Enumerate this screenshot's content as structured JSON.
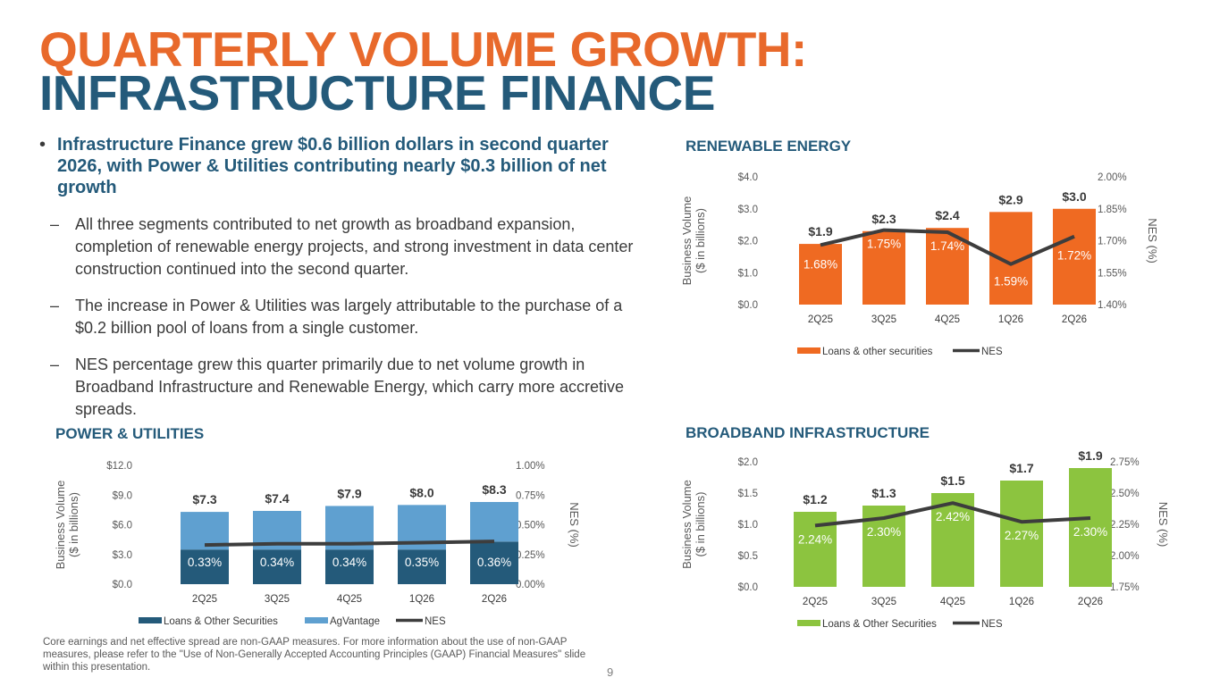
{
  "title": {
    "line1": "QUARTERLY VOLUME GROWTH:",
    "line2": "INFRASTRUCTURE FINANCE"
  },
  "bullets": {
    "main": "Infrastructure Finance grew $0.6 billion dollars in second quarter 2026, with Power & Utilities contributing nearly $0.3 billion of net growth",
    "sub": [
      "All three segments contributed to net growth as broadband expansion, completion of renewable energy projects, and strong investment in data center construction continued into the second quarter.",
      "The increase in Power & Utilities was largely attributable to the purchase of a $0.2 billion pool of loans from a single customer.",
      "NES percentage grew this quarter primarily due to net volume growth in Broadband Infrastructure and Renewable Energy, which carry more accretive spreads."
    ]
  },
  "footnote": "Core earnings and net effective spread are non-GAAP measures. For more information about the use of non-GAAP measures, please refer to the \"Use of Non-Generally Accepted Accounting Principles (GAAP) Financial Measures\" slide within this presentation.",
  "page_number": "9",
  "chart_data": [
    {
      "id": "renewable",
      "type": "bar",
      "title": "RENEWABLE ENERGY",
      "categories": [
        "2Q25",
        "3Q25",
        "4Q25",
        "1Q26",
        "2Q26"
      ],
      "ylabel": [
        "Business Volume",
        "($ in billions)"
      ],
      "y2label": "NES (%)",
      "ylim": [
        0,
        4
      ],
      "yticks": [
        "$0.0",
        "$1.0",
        "$2.0",
        "$3.0",
        "$4.0"
      ],
      "y2lim": [
        1.4,
        2.0
      ],
      "y2ticks": [
        "1.40%",
        "1.55%",
        "1.70%",
        "1.85%",
        "2.00%"
      ],
      "stacked": false,
      "series": [
        {
          "name": "Loans & other securities",
          "color": "#ef6a22",
          "values": [
            1.9,
            2.3,
            2.4,
            2.9,
            3.0
          ]
        }
      ],
      "totals": [
        "$1.9",
        "$2.3",
        "$2.4",
        "$2.9",
        "$3.0"
      ],
      "nes": {
        "name": "NES",
        "color": "#3d3d3d",
        "values": [
          1.68,
          1.75,
          1.74,
          1.59,
          1.72
        ],
        "labels": [
          "1.68%",
          "1.75%",
          "1.74%",
          "1.59%",
          "1.72%"
        ]
      },
      "legend": "bottom"
    },
    {
      "id": "power",
      "type": "bar",
      "title": "POWER & UTILITIES",
      "categories": [
        "2Q25",
        "3Q25",
        "4Q25",
        "1Q26",
        "2Q26"
      ],
      "ylabel": [
        "Business Volume",
        "($ in billions)"
      ],
      "y2label": "NES (%)",
      "ylim": [
        0,
        12
      ],
      "yticks": [
        "$0.0",
        "$3.0",
        "$6.0",
        "$9.0",
        "$12.0"
      ],
      "y2lim": [
        0,
        1.0
      ],
      "y2ticks": [
        "0.00%",
        "0.25%",
        "0.50%",
        "0.75%",
        "1.00%"
      ],
      "stacked": true,
      "series": [
        {
          "name": "Loans & Other Securities",
          "color": "#245a7a",
          "values": [
            3.5,
            3.5,
            3.5,
            3.5,
            4.3
          ]
        },
        {
          "name": "AgVantage",
          "color": "#5fa0d0",
          "values": [
            3.8,
            3.9,
            4.4,
            4.5,
            4.0
          ]
        }
      ],
      "totals": [
        "$7.3",
        "$7.4",
        "$7.9",
        "$8.0",
        "$8.3"
      ],
      "nes": {
        "name": "NES",
        "color": "#3d3d3d",
        "values": [
          0.33,
          0.34,
          0.34,
          0.35,
          0.36
        ],
        "labels": [
          "0.33%",
          "0.34%",
          "0.34%",
          "0.35%",
          "0.36%"
        ]
      },
      "legend": "bottom"
    },
    {
      "id": "broadband",
      "type": "bar",
      "title": "BROADBAND INFRASTRUCTURE",
      "categories": [
        "2Q25",
        "3Q25",
        "4Q25",
        "1Q26",
        "2Q26"
      ],
      "ylabel": [
        "Business Volume",
        "($ in billions)"
      ],
      "y2label": "NES (%)",
      "ylim": [
        0,
        2
      ],
      "yticks": [
        "$0.0",
        "$0.5",
        "$1.0",
        "$1.5",
        "$2.0"
      ],
      "y2lim": [
        1.75,
        2.75
      ],
      "y2ticks": [
        "1.75%",
        "2.00%",
        "2.25%",
        "2.50%",
        "2.75%"
      ],
      "stacked": false,
      "series": [
        {
          "name": "Loans & Other Securities",
          "color": "#8cc43f",
          "values": [
            1.2,
            1.3,
            1.5,
            1.7,
            1.9
          ]
        }
      ],
      "totals": [
        "$1.2",
        "$1.3",
        "$1.5",
        "$1.7",
        "$1.9"
      ],
      "nes": {
        "name": "NES",
        "color": "#3d3d3d",
        "values": [
          2.24,
          2.3,
          2.42,
          2.27,
          2.3
        ],
        "labels": [
          "2.24%",
          "2.30%",
          "2.42%",
          "2.27%",
          "2.30%"
        ]
      },
      "legend": "bottom"
    }
  ]
}
